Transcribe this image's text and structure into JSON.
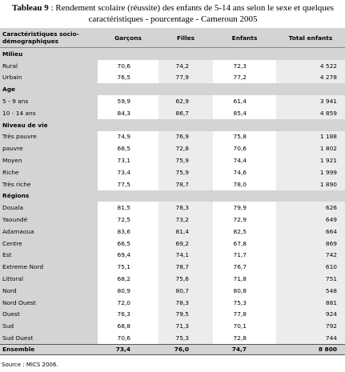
{
  "title": {
    "label": "Tableau 9",
    "text": ": Rendement scolaire (réussite)  des enfants de 5-14 ans selon le sexe et quelques caractéristiques - pourcentage - Cameroun 2005"
  },
  "table": {
    "headers": [
      "Caractéristiques socio-démographiques",
      "Garçons",
      "Filles",
      "Enfants",
      "Total enfants"
    ],
    "groups": [
      {
        "name": "Milieu",
        "rows": [
          [
            "Rural",
            "70,6",
            "74,2",
            "72,3",
            "4 522"
          ],
          [
            "Urbain",
            "76,5",
            "77,9",
            "77,2",
            "4 278"
          ]
        ]
      },
      {
        "name": "Age",
        "rows": [
          [
            "5 - 9 ans",
            "59,9",
            "62,9",
            "61,4",
            "3 941"
          ],
          [
            "10 - 14 ans",
            "84,3",
            "86,7",
            "85,4",
            "4 859"
          ]
        ]
      },
      {
        "name": "Niveau de vie",
        "rows": [
          [
            "Très pauvre",
            "74,9",
            "76,9",
            "75,8",
            "1 188"
          ],
          [
            "pauvre",
            "68,5",
            "72,8",
            "70,6",
            "1 802"
          ],
          [
            "Moyen",
            "73,1",
            "75,9",
            "74,4",
            "1 921"
          ],
          [
            "Riche",
            "73,4",
            "75,9",
            "74,6",
            "1 999"
          ],
          [
            "Très riche",
            "77,5",
            "78,7",
            "78,0",
            "1 890"
          ]
        ]
      },
      {
        "name": "Régions",
        "rows": [
          [
            "Douala",
            "81,5",
            "78,3",
            "79,9",
            "626"
          ],
          [
            "Yaoundé",
            "72,5",
            "73,2",
            "72,9",
            "649"
          ],
          [
            "Adamaoua",
            "83,6",
            "81,4",
            "82,5",
            "664"
          ],
          [
            "Centre",
            "66,5",
            "69,2",
            "67,8",
            "869"
          ],
          [
            "Est",
            "69,4",
            "74,1",
            "71,7",
            "742"
          ],
          [
            "Extreme Nord",
            "75,1",
            "78,7",
            "76,7",
            "610"
          ],
          [
            "Littoral",
            "68,2",
            "75,6",
            "71,8",
            "751"
          ],
          [
            "Nord",
            "80,9",
            "80,7",
            "80,8",
            "548"
          ],
          [
            "Nord Ouest",
            "72,0",
            "78,3",
            "75,3",
            "881"
          ],
          [
            "Ouest",
            "76,3",
            "79,5",
            "77,8",
            "924"
          ],
          [
            "Sud",
            "68,8",
            "71,3",
            "70,1",
            "792"
          ],
          [
            "Sud Ouest",
            "70,6",
            "75,3",
            "72,8",
            "744"
          ]
        ]
      }
    ],
    "total": [
      "Ensemble",
      "73,4",
      "76,0",
      "74,7",
      "8 800"
    ]
  },
  "source": "Source : MICS 2006."
}
